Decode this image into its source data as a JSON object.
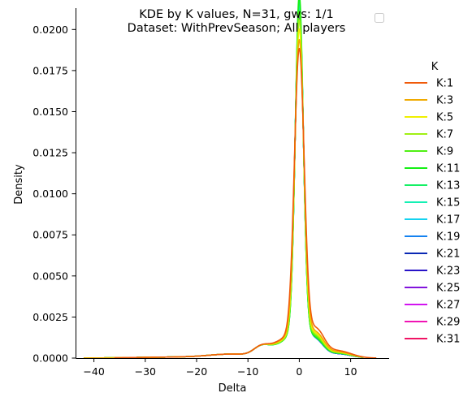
{
  "chart_data": {
    "type": "line",
    "title": "KDE by K values, N=31, gws: 1/1",
    "subtitle": "Dataset: WithPrevSeason; All players",
    "xlabel": "Delta",
    "ylabel": "Density",
    "xlim": [
      -43.5,
      17.5
    ],
    "ylim": [
      0,
      0.0213
    ],
    "x_ticks": [
      -40,
      -30,
      -20,
      -10,
      0,
      10
    ],
    "x_tick_labels": [
      "−40",
      "−30",
      "−20",
      "−10",
      "0",
      "10"
    ],
    "y_ticks": [
      0,
      0.0025,
      0.005,
      0.0075,
      0.01,
      0.0125,
      0.015,
      0.0175,
      0.02
    ],
    "y_tick_labels": [
      "0.0000",
      "0.0025",
      "0.0050",
      "0.0075",
      "0.0100",
      "0.0125",
      "0.0150",
      "0.0175",
      "0.0200"
    ],
    "grid": false,
    "legend": {
      "title": "K",
      "placement": "right"
    },
    "series": [
      {
        "name": "K:1",
        "color": "#f05a0a",
        "peak": 0.0172,
        "width": 0.95,
        "dip": 0.0,
        "sideHeight": 0.002
      },
      {
        "name": "K:3",
        "color": "#f0aa00",
        "peak": 0.0177,
        "width": 0.9,
        "dip": 0.0,
        "sideHeight": 0.0017
      },
      {
        "name": "K:5",
        "color": "#f0f000",
        "peak": 0.0183,
        "width": 0.86,
        "dip": 0.0,
        "sideHeight": 0.0016
      },
      {
        "name": "K:7",
        "color": "#a0f014",
        "peak": 0.0188,
        "width": 0.83,
        "dip": 0.0,
        "sideHeight": 0.0015
      },
      {
        "name": "K:9",
        "color": "#50f014",
        "peak": 0.0193,
        "width": 0.8,
        "dip": 0.0,
        "sideHeight": 0.0014
      },
      {
        "name": "K:11",
        "color": "#14f014",
        "peak": 0.0202,
        "width": 0.78,
        "dip": 0.0,
        "sideHeight": 0.0013
      },
      {
        "name": "K:13",
        "color": "#14f064",
        "peak": 0.0199,
        "width": 0.78,
        "dip": 0.0,
        "sideHeight": 0.0013
      },
      {
        "name": "K:15",
        "color": "#14f0b4",
        "peak": 0.0197,
        "width": 0.79,
        "dip": 0.0,
        "sideHeight": 0.0013
      },
      {
        "name": "K:17",
        "color": "#14d2f0",
        "peak": 0.0196,
        "width": 0.79,
        "dip": 0.0,
        "sideHeight": 0.0013
      },
      {
        "name": "K:19",
        "color": "#1482f0",
        "peak": 0.0195,
        "width": 0.8,
        "dip": 0.0,
        "sideHeight": 0.0012
      },
      {
        "name": "K:21",
        "color": "#0a28b4",
        "peak": 0.0194,
        "width": 0.8,
        "dip": 0.0,
        "sideHeight": 0.0012
      },
      {
        "name": "K:23",
        "color": "#2814c8",
        "peak": 0.0193,
        "width": 0.81,
        "dip": 0.0,
        "sideHeight": 0.0012
      },
      {
        "name": "K:25",
        "color": "#8214dc",
        "peak": 0.0192,
        "width": 0.81,
        "dip": 0.0,
        "sideHeight": 0.0012
      },
      {
        "name": "K:27",
        "color": "#d214f0",
        "peak": 0.0191,
        "width": 0.82,
        "dip": 0.0,
        "sideHeight": 0.0012
      },
      {
        "name": "K:29",
        "color": "#f014b4",
        "peak": 0.019,
        "width": 0.82,
        "dip": 0.0,
        "sideHeight": 0.0012
      },
      {
        "name": "K:31",
        "color": "#f01464",
        "peak": 0.019,
        "width": 0.82,
        "dip": 0.0,
        "sideHeight": 0.0012
      }
    ],
    "line_order_note_hidden": ""
  }
}
